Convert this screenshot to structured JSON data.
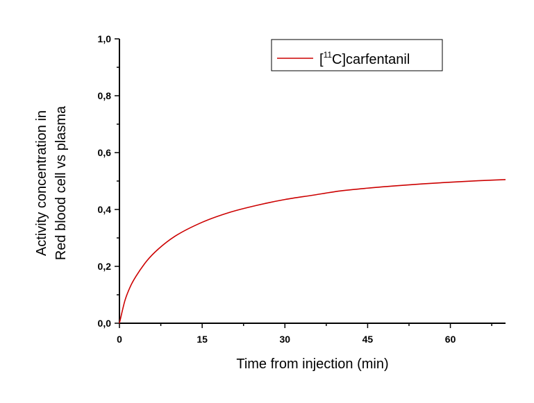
{
  "chart_data": {
    "type": "line",
    "title": "",
    "xlabel": "Time from injection (min)",
    "ylabel_lines": [
      "Activity concentration in",
      "Red blood cell vs plasma"
    ],
    "xlim": [
      0,
      70
    ],
    "ylim": [
      0,
      1.0
    ],
    "x_ticks": [
      0,
      15,
      30,
      45,
      60
    ],
    "x_tick_labels": [
      "0",
      "15",
      "30",
      "45",
      "60"
    ],
    "y_ticks": [
      0,
      0.2,
      0.4,
      0.6,
      0.8,
      1.0
    ],
    "y_tick_labels": [
      "0,0",
      "0,2",
      "0,4",
      "0,6",
      "0,8",
      "1,0"
    ],
    "grid": false,
    "legend_position": "top-right",
    "legend": {
      "bracket_open": "[",
      "superscript": "11",
      "label_rest": "C]carfentanil"
    },
    "series": [
      {
        "color": "#cc0000",
        "x": [
          0,
          1,
          2,
          3,
          5,
          7,
          10,
          15,
          20,
          25,
          30,
          35,
          40,
          45,
          50,
          55,
          60,
          65,
          70
        ],
        "y": [
          0.0,
          0.08,
          0.13,
          0.165,
          0.22,
          0.26,
          0.305,
          0.355,
          0.39,
          0.415,
          0.435,
          0.45,
          0.465,
          0.475,
          0.483,
          0.49,
          0.496,
          0.501,
          0.505
        ]
      }
    ]
  }
}
